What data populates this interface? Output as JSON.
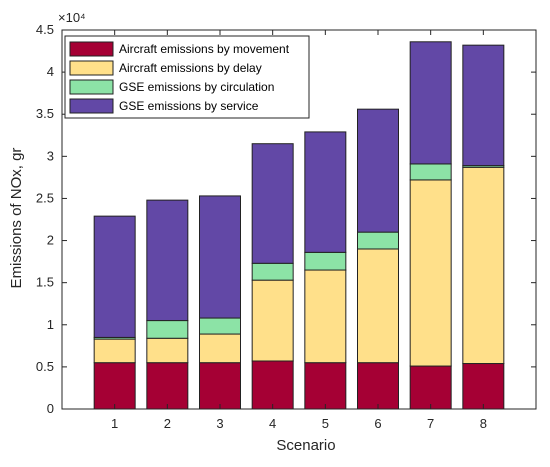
{
  "chart_data": {
    "type": "bar",
    "stacked": true,
    "xlabel": "Scenario",
    "ylabel": "Emissions of NOx, gr",
    "y_exponent_label": "×10⁴",
    "y_scale_factor": 10000,
    "ylim": [
      0,
      4.5
    ],
    "yticks": [
      "0",
      "0.5",
      "1",
      "1.5",
      "2",
      "2.5",
      "3",
      "3.5",
      "4",
      "4.5"
    ],
    "categories": [
      "1",
      "2",
      "3",
      "4",
      "5",
      "6",
      "7",
      "8"
    ],
    "grid": false,
    "legend_position": "top-left",
    "series": [
      {
        "name": "Aircraft emissions by movement",
        "color": "#A50034",
        "values": [
          0.55,
          0.55,
          0.55,
          0.57,
          0.55,
          0.55,
          0.51,
          0.54
        ]
      },
      {
        "name": "Aircraft emissions by delay",
        "color": "#FFE08A",
        "values": [
          0.28,
          0.29,
          0.34,
          0.96,
          1.1,
          1.35,
          2.21,
          2.33
        ]
      },
      {
        "name": "GSE emissions by circulation",
        "color": "#8CE3A6",
        "values": [
          0.02,
          0.21,
          0.19,
          0.2,
          0.21,
          0.2,
          0.19,
          0.02
        ]
      },
      {
        "name": "GSE emissions by service",
        "color": "#6248A6",
        "values": [
          1.44,
          1.43,
          1.45,
          1.42,
          1.43,
          1.46,
          1.45,
          1.43
        ]
      }
    ]
  }
}
